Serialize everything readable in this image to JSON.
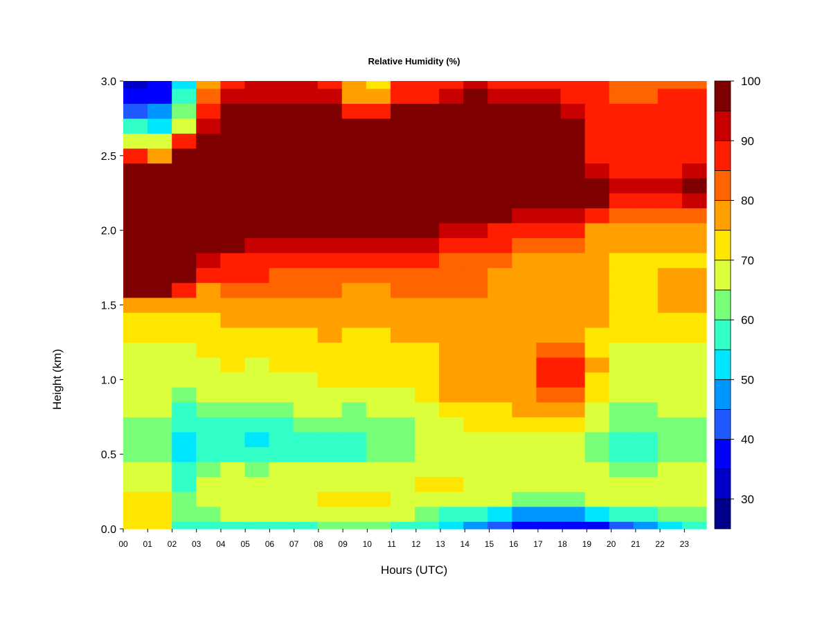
{
  "chart_data": {
    "type": "heatmap",
    "title": "Relative Humidity (%)",
    "xlabel": "Hours (UTC)",
    "ylabel": "Height (km)",
    "xlim": [
      0,
      23.9
    ],
    "ylim": [
      0.0,
      3.0
    ],
    "x_ticks": [
      "00",
      "01",
      "02",
      "03",
      "04",
      "05",
      "06",
      "07",
      "08",
      "09",
      "10",
      "11",
      "12",
      "13",
      "14",
      "15",
      "16",
      "17",
      "18",
      "19",
      "20",
      "21",
      "22",
      "23"
    ],
    "y_ticks": [
      "0.0",
      "0.5",
      "1.0",
      "1.5",
      "2.0",
      "2.5",
      "3.0"
    ],
    "y": [
      0.0,
      0.1,
      0.2,
      0.3,
      0.4,
      0.5,
      0.6,
      0.7,
      0.8,
      0.9,
      1.0,
      1.1,
      1.2,
      1.3,
      1.4,
      1.5,
      1.6,
      1.7,
      1.8,
      1.9,
      2.0,
      2.1,
      2.2,
      2.3,
      2.4,
      2.5,
      2.6,
      2.7,
      2.8,
      2.9,
      3.0
    ],
    "x": [
      0,
      1,
      2,
      3,
      4,
      5,
      6,
      7,
      8,
      9,
      10,
      11,
      12,
      13,
      14,
      15,
      16,
      17,
      18,
      19,
      20,
      21,
      22,
      23
    ],
    "z": [
      [
        72,
        72,
        58,
        58,
        60,
        58,
        58,
        60,
        62,
        62,
        62,
        60,
        56,
        52,
        50,
        45,
        40,
        38,
        38,
        40,
        42,
        48,
        55,
        58
      ],
      [
        72,
        74,
        62,
        64,
        68,
        66,
        68,
        68,
        70,
        70,
        70,
        68,
        64,
        60,
        56,
        54,
        50,
        48,
        48,
        52,
        56,
        58,
        62,
        64
      ],
      [
        74,
        74,
        64,
        68,
        70,
        68,
        70,
        70,
        72,
        72,
        72,
        70,
        70,
        70,
        68,
        66,
        64,
        62,
        64,
        66,
        66,
        66,
        68,
        68
      ],
      [
        70,
        70,
        60,
        66,
        68,
        66,
        68,
        68,
        70,
        70,
        70,
        70,
        72,
        72,
        70,
        70,
        68,
        68,
        68,
        68,
        68,
        66,
        68,
        68
      ],
      [
        66,
        66,
        58,
        62,
        66,
        64,
        66,
        66,
        68,
        68,
        68,
        68,
        70,
        70,
        70,
        70,
        70,
        68,
        68,
        66,
        62,
        64,
        66,
        66
      ],
      [
        62,
        62,
        54,
        58,
        60,
        56,
        60,
        60,
        60,
        60,
        62,
        62,
        66,
        68,
        68,
        68,
        68,
        66,
        66,
        62,
        58,
        60,
        62,
        62
      ],
      [
        62,
        62,
        52,
        58,
        58,
        54,
        58,
        60,
        60,
        60,
        62,
        62,
        66,
        68,
        70,
        70,
        70,
        68,
        66,
        64,
        58,
        60,
        62,
        62
      ],
      [
        64,
        64,
        56,
        60,
        60,
        58,
        60,
        62,
        62,
        62,
        64,
        64,
        68,
        70,
        72,
        72,
        72,
        72,
        72,
        66,
        62,
        62,
        64,
        64
      ],
      [
        66,
        66,
        60,
        62,
        64,
        62,
        64,
        66,
        66,
        64,
        66,
        68,
        70,
        74,
        74,
        74,
        76,
        80,
        80,
        70,
        64,
        64,
        66,
        66
      ],
      [
        68,
        68,
        64,
        66,
        66,
        66,
        68,
        68,
        70,
        68,
        68,
        70,
        72,
        76,
        76,
        76,
        78,
        84,
        84,
        72,
        66,
        66,
        68,
        68
      ],
      [
        70,
        70,
        68,
        68,
        68,
        68,
        70,
        70,
        72,
        72,
        72,
        72,
        74,
        80,
        78,
        78,
        80,
        86,
        86,
        74,
        68,
        68,
        68,
        68
      ],
      [
        70,
        70,
        70,
        70,
        72,
        70,
        72,
        72,
        72,
        72,
        72,
        74,
        74,
        80,
        80,
        80,
        80,
        86,
        86,
        76,
        70,
        70,
        70,
        70
      ],
      [
        70,
        70,
        70,
        72,
        72,
        72,
        72,
        72,
        74,
        72,
        72,
        74,
        74,
        76,
        76,
        76,
        78,
        82,
        82,
        74,
        70,
        70,
        70,
        70
      ],
      [
        72,
        72,
        72,
        72,
        74,
        74,
        74,
        74,
        76,
        74,
        74,
        76,
        76,
        76,
        76,
        76,
        76,
        80,
        80,
        74,
        72,
        72,
        72,
        72
      ],
      [
        72,
        72,
        72,
        74,
        76,
        76,
        76,
        76,
        76,
        76,
        76,
        76,
        78,
        78,
        78,
        78,
        78,
        80,
        80,
        76,
        72,
        74,
        74,
        74
      ],
      [
        76,
        76,
        76,
        76,
        78,
        78,
        78,
        78,
        78,
        78,
        78,
        80,
        80,
        80,
        80,
        80,
        78,
        80,
        80,
        76,
        74,
        74,
        76,
        76
      ],
      [
        96,
        96,
        86,
        80,
        82,
        82,
        82,
        82,
        82,
        80,
        80,
        82,
        82,
        82,
        82,
        80,
        78,
        78,
        78,
        76,
        74,
        74,
        76,
        76
      ],
      [
        100,
        100,
        96,
        86,
        86,
        86,
        84,
        84,
        84,
        82,
        82,
        84,
        84,
        82,
        82,
        80,
        78,
        78,
        78,
        76,
        74,
        74,
        76,
        76
      ],
      [
        100,
        100,
        100,
        94,
        90,
        90,
        88,
        88,
        88,
        86,
        86,
        88,
        86,
        84,
        84,
        82,
        80,
        80,
        78,
        76,
        74,
        74,
        74,
        74
      ],
      [
        100,
        100,
        100,
        98,
        96,
        94,
        94,
        94,
        94,
        92,
        92,
        94,
        92,
        90,
        88,
        86,
        84,
        84,
        82,
        78,
        76,
        76,
        76,
        76
      ],
      [
        100,
        100,
        100,
        100,
        100,
        100,
        100,
        100,
        100,
        100,
        100,
        98,
        96,
        94,
        92,
        90,
        88,
        88,
        86,
        80,
        78,
        78,
        78,
        78
      ],
      [
        100,
        100,
        100,
        100,
        100,
        100,
        100,
        100,
        100,
        100,
        100,
        100,
        100,
        100,
        98,
        96,
        94,
        94,
        92,
        86,
        82,
        82,
        82,
        82
      ],
      [
        100,
        100,
        100,
        100,
        100,
        100,
        100,
        100,
        100,
        100,
        100,
        100,
        100,
        100,
        100,
        100,
        100,
        100,
        100,
        96,
        90,
        90,
        90,
        92
      ],
      [
        100,
        100,
        100,
        100,
        100,
        100,
        100,
        100,
        100,
        100,
        100,
        100,
        100,
        100,
        100,
        100,
        100,
        100,
        100,
        100,
        92,
        92,
        94,
        96
      ],
      [
        96,
        96,
        100,
        100,
        100,
        100,
        100,
        100,
        100,
        100,
        100,
        100,
        100,
        100,
        100,
        100,
        100,
        100,
        100,
        94,
        88,
        88,
        90,
        92
      ],
      [
        86,
        80,
        98,
        100,
        100,
        100,
        100,
        100,
        100,
        100,
        100,
        100,
        100,
        100,
        100,
        100,
        100,
        100,
        100,
        90,
        86,
        86,
        88,
        88
      ],
      [
        68,
        66,
        86,
        98,
        100,
        100,
        100,
        100,
        100,
        100,
        100,
        100,
        100,
        100,
        100,
        100,
        100,
        100,
        98,
        90,
        86,
        86,
        88,
        88
      ],
      [
        58,
        54,
        70,
        92,
        98,
        100,
        100,
        100,
        100,
        96,
        96,
        100,
        100,
        100,
        100,
        100,
        100,
        100,
        96,
        90,
        86,
        86,
        88,
        88
      ],
      [
        42,
        46,
        62,
        88,
        96,
        98,
        98,
        98,
        96,
        90,
        90,
        96,
        96,
        98,
        100,
        98,
        96,
        96,
        94,
        90,
        86,
        86,
        88,
        88
      ],
      [
        36,
        40,
        56,
        84,
        92,
        94,
        94,
        94,
        92,
        80,
        80,
        90,
        90,
        94,
        96,
        94,
        92,
        92,
        90,
        88,
        84,
        84,
        86,
        86
      ],
      [
        32,
        36,
        52,
        80,
        90,
        92,
        92,
        92,
        88,
        76,
        74,
        86,
        86,
        90,
        92,
        90,
        88,
        88,
        88,
        86,
        84,
        84,
        84,
        84
      ]
    ],
    "colorbar": {
      "label_ticks": [
        "30",
        "40",
        "50",
        "60",
        "70",
        "80",
        "90",
        "100"
      ],
      "levels": [
        25,
        30,
        35,
        40,
        45,
        50,
        55,
        60,
        65,
        70,
        75,
        80,
        85,
        90,
        95,
        100
      ],
      "colors": [
        "#00008B",
        "#0000C8",
        "#0000FF",
        "#1E5AFF",
        "#0096FF",
        "#00E6FF",
        "#32FFC8",
        "#78FF78",
        "#DCFF3C",
        "#FFE600",
        "#FFA000",
        "#FF6400",
        "#FF1E00",
        "#C80000",
        "#7F0000"
      ]
    }
  }
}
